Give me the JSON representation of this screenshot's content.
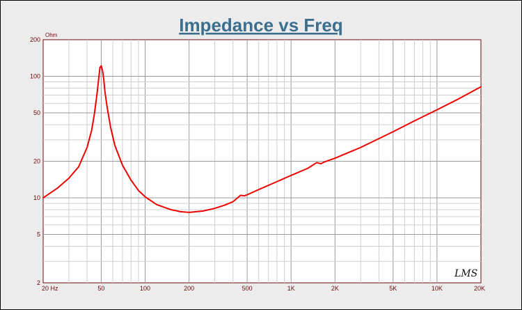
{
  "chart_data": {
    "type": "line",
    "title": "Impedance vs Freq",
    "ylabel": "Ohm",
    "xlabel": "",
    "x_scale": "log",
    "y_scale": "log",
    "xlim": [
      20,
      20000
    ],
    "ylim": [
      2,
      200
    ],
    "grid": true,
    "line_color": "#ee0000",
    "x_ticks": [
      {
        "value": 20,
        "label": "20  Hz"
      },
      {
        "value": 50,
        "label": "50"
      },
      {
        "value": 100,
        "label": "100"
      },
      {
        "value": 200,
        "label": "200"
      },
      {
        "value": 500,
        "label": "500"
      },
      {
        "value": 1000,
        "label": "1K"
      },
      {
        "value": 2000,
        "label": "2K"
      },
      {
        "value": 5000,
        "label": "5K"
      },
      {
        "value": 10000,
        "label": "10K"
      },
      {
        "value": 20000,
        "label": "20K"
      }
    ],
    "y_ticks": [
      {
        "value": 200,
        "label": "200"
      },
      {
        "value": 100,
        "label": "100"
      },
      {
        "value": 50,
        "label": "50"
      },
      {
        "value": 20,
        "label": "20"
      },
      {
        "value": 10,
        "label": "10"
      },
      {
        "value": 5,
        "label": "5"
      },
      {
        "value": 2,
        "label": "2"
      }
    ],
    "series": [
      {
        "x": [
          20,
          25,
          30,
          35,
          40,
          43,
          45,
          47,
          48,
          49,
          50,
          51,
          52,
          53,
          55,
          58,
          62,
          70,
          80,
          90,
          100,
          120,
          150,
          175,
          200,
          250,
          300,
          350,
          400,
          430,
          450,
          480,
          500,
          600,
          800,
          1000,
          1300,
          1500,
          1550,
          1600,
          1700,
          2000,
          3000,
          5000,
          7000,
          10000,
          14000,
          20000
        ],
        "y": [
          10,
          12,
          14.5,
          18,
          26,
          36,
          50,
          75,
          95,
          118,
          122,
          112,
          95,
          75,
          55,
          38,
          27,
          18.5,
          14,
          11.5,
          10.2,
          8.8,
          8,
          7.7,
          7.6,
          7.8,
          8.2,
          8.7,
          9.3,
          10,
          10.5,
          10.4,
          10.6,
          11.7,
          13.6,
          15.3,
          17.5,
          19.5,
          19.3,
          19.1,
          19.8,
          21.2,
          26,
          35,
          43,
          53,
          65,
          82
        ]
      }
    ]
  },
  "watermark": "LMS"
}
